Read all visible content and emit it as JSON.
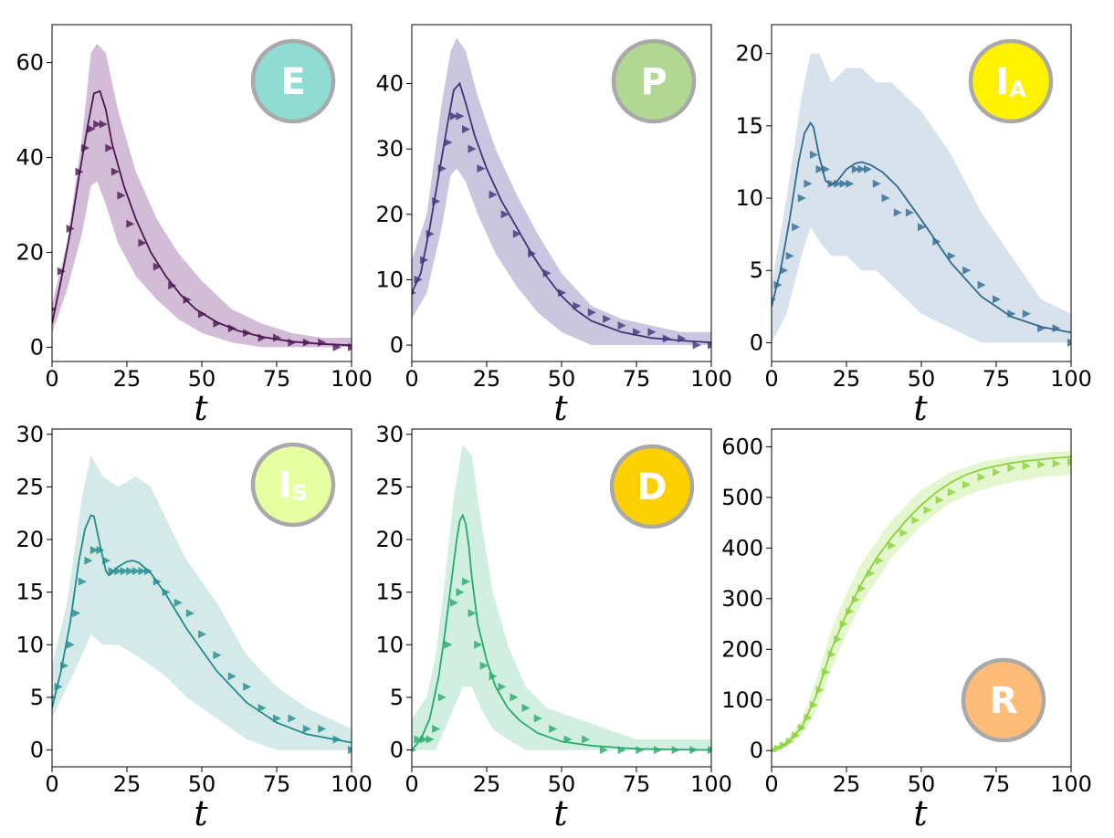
{
  "chart_data": [
    {
      "type": "line",
      "badge": {
        "text": "E",
        "sub": "",
        "fill": "#8fdcd2"
      },
      "color": "#4b1850",
      "band_color": "#9b6aa6",
      "xlabel": "t",
      "xlim": [
        0,
        100
      ],
      "ylim": [
        -3,
        68
      ],
      "xticks": [
        0,
        25,
        50,
        75,
        100
      ],
      "yticks": [
        0,
        20,
        40,
        60
      ],
      "model": {
        "x": [
          0,
          3,
          6,
          9,
          12,
          14,
          16,
          18,
          20,
          24,
          28,
          33,
          38,
          43,
          48,
          55,
          62,
          70,
          80,
          90,
          100
        ],
        "y": [
          5,
          14,
          24,
          36,
          47,
          53.5,
          54,
          50,
          43,
          34,
          27,
          20,
          15,
          11,
          8,
          5.3,
          3.5,
          2.2,
          1.2,
          0.7,
          0.4
        ]
      },
      "band": {
        "x": [
          0,
          5,
          10,
          13,
          15,
          18,
          22,
          28,
          35,
          42,
          50,
          60,
          70,
          80,
          90,
          100
        ],
        "lower": [
          3,
          12,
          24,
          34,
          35,
          30,
          22,
          15,
          10,
          6,
          3,
          1,
          0,
          0,
          0,
          0
        ],
        "upper": [
          9,
          22,
          44,
          62,
          64,
          62,
          50,
          37,
          27,
          20,
          14,
          8,
          5,
          3,
          2,
          2
        ]
      },
      "markers": {
        "x": [
          0,
          3,
          6,
          9,
          11,
          13,
          15,
          17,
          19,
          21,
          23,
          26,
          30,
          35,
          40,
          45,
          50,
          55,
          60,
          65,
          70,
          75,
          80,
          85,
          90,
          95,
          100
        ],
        "y": [
          8,
          16,
          25,
          37,
          42,
          46,
          47,
          47,
          42,
          37,
          32,
          26,
          22,
          17,
          13,
          10,
          7,
          5,
          4,
          3,
          2,
          2,
          1,
          1,
          1,
          0,
          0
        ]
      }
    },
    {
      "type": "line",
      "badge": {
        "text": "P",
        "sub": "",
        "fill": "#b1d893"
      },
      "color": "#3d3577",
      "band_color": "#8a80b8",
      "xlabel": "t",
      "xlim": [
        0,
        100
      ],
      "ylim": [
        -2.5,
        49
      ],
      "xticks": [
        0,
        25,
        50,
        75,
        100
      ],
      "yticks": [
        0,
        10,
        20,
        30,
        40
      ],
      "model": {
        "x": [
          0,
          3,
          6,
          9,
          12,
          14,
          16,
          18,
          21,
          25,
          30,
          35,
          40,
          45,
          50,
          55,
          60,
          70,
          80,
          90,
          100
        ],
        "y": [
          8,
          11,
          18,
          26,
          34,
          39,
          40,
          37,
          32,
          27,
          22,
          18,
          14,
          10.5,
          7.5,
          5.3,
          3.7,
          2,
          1.1,
          0.7,
          0.4
        ]
      },
      "band": {
        "x": [
          0,
          5,
          10,
          13,
          15,
          18,
          22,
          28,
          35,
          42,
          50,
          60,
          70,
          80,
          90,
          100
        ],
        "lower": [
          4,
          8,
          18,
          26,
          27,
          25,
          20,
          14,
          9,
          5,
          2,
          0,
          0,
          0,
          0,
          0
        ],
        "upper": [
          13,
          20,
          37,
          45,
          47,
          45,
          38,
          30,
          23,
          17,
          11,
          6,
          4,
          3,
          2,
          2
        ]
      },
      "markers": {
        "x": [
          0,
          2,
          4,
          6,
          8,
          10,
          12,
          14,
          16,
          18,
          20,
          23,
          27,
          31,
          35,
          40,
          45,
          50,
          55,
          60,
          65,
          70,
          75,
          80,
          85,
          90,
          95,
          100
        ],
        "y": [
          8,
          10,
          13,
          17,
          22,
          27,
          31,
          35,
          35,
          33,
          30,
          27,
          23,
          20,
          17,
          14,
          11,
          8,
          6,
          5,
          4,
          3,
          2,
          2,
          1,
          1,
          0,
          0
        ]
      }
    },
    {
      "type": "line",
      "badge": {
        "text": "I",
        "sub": "A",
        "fill": "#fff200"
      },
      "color": "#2f6a8f",
      "band_color": "#a9bfd4",
      "xlabel": "t",
      "xlim": [
        0,
        100
      ],
      "ylim": [
        -1.3,
        22
      ],
      "xticks": [
        0,
        25,
        50,
        75,
        100
      ],
      "yticks": [
        0,
        5,
        10,
        15,
        20
      ],
      "model": {
        "x": [
          0,
          3,
          6,
          9,
          11,
          13,
          14,
          16,
          18,
          20,
          22,
          25,
          28,
          30,
          33,
          37,
          42,
          50,
          60,
          70,
          80,
          90,
          100
        ],
        "y": [
          2.5,
          5,
          8.5,
          12.5,
          14.5,
          15.2,
          14.9,
          12.8,
          11.2,
          10.9,
          11.2,
          12,
          12.4,
          12.5,
          12.3,
          11.8,
          10.8,
          8.5,
          5.5,
          3.2,
          1.8,
          1.1,
          0.7
        ]
      },
      "band": {
        "x": [
          0,
          5,
          10,
          13,
          16,
          20,
          25,
          30,
          35,
          40,
          45,
          50,
          60,
          70,
          80,
          90,
          100
        ],
        "lower": [
          0,
          2,
          6,
          8,
          7,
          6,
          6,
          5,
          5,
          4,
          3,
          2,
          1,
          0,
          0,
          0,
          0
        ],
        "upper": [
          4,
          10,
          17,
          20,
          20,
          18,
          19,
          19,
          18,
          18,
          17,
          16,
          13,
          9,
          6,
          3,
          2
        ]
      },
      "markers": {
        "x": [
          0,
          2,
          4,
          6,
          8,
          10,
          12,
          14,
          16,
          18,
          20,
          22,
          24,
          26,
          28,
          30,
          32,
          35,
          38,
          42,
          46,
          50,
          55,
          60,
          65,
          70,
          75,
          80,
          85,
          90,
          95,
          100
        ],
        "y": [
          3,
          4,
          5,
          6,
          8,
          10,
          11,
          13,
          12,
          12,
          11,
          11,
          11,
          11,
          12,
          12,
          12,
          11,
          10,
          9,
          9,
          8,
          7,
          6,
          5,
          4,
          3,
          2,
          2,
          1,
          1,
          0
        ]
      }
    },
    {
      "type": "line",
      "badge": {
        "text": "I",
        "sub": "S",
        "fill": "#e6ffa0"
      },
      "color": "#238a8d",
      "band_color": "#9ed0cb",
      "xlabel": "t",
      "xlim": [
        0,
        100
      ],
      "ylim": [
        -1.6,
        30.5
      ],
      "xticks": [
        0,
        25,
        50,
        75,
        100
      ],
      "yticks": [
        0,
        5,
        10,
        15,
        20,
        25,
        30
      ],
      "model": {
        "x": [
          0,
          3,
          6,
          9,
          11,
          13,
          14,
          16,
          18,
          19,
          20,
          22,
          25,
          27,
          29,
          33,
          38,
          45,
          55,
          65,
          75,
          85,
          100
        ],
        "y": [
          4,
          7.5,
          12,
          18,
          21,
          22.3,
          22.2,
          19.5,
          17,
          16.6,
          16.8,
          17.4,
          17.9,
          18,
          17.8,
          16.8,
          14.8,
          11.5,
          7.5,
          4.5,
          2.6,
          1.5,
          0.7
        ]
      },
      "band": {
        "x": [
          0,
          5,
          10,
          13,
          17,
          22,
          28,
          33,
          38,
          45,
          55,
          65,
          75,
          85,
          100
        ],
        "lower": [
          3,
          6,
          9,
          11,
          10,
          10,
          9,
          8,
          7,
          5,
          3,
          1,
          0,
          0,
          0
        ],
        "upper": [
          8,
          14,
          24,
          28,
          26,
          25,
          26,
          25,
          22,
          18,
          14,
          9,
          6,
          4,
          2
        ]
      },
      "markers": {
        "x": [
          0,
          2,
          4,
          6,
          8,
          10,
          12,
          14,
          16,
          18,
          20,
          22,
          24,
          26,
          28,
          30,
          32,
          35,
          38,
          42,
          46,
          50,
          55,
          60,
          65,
          70,
          75,
          80,
          85,
          90,
          95,
          100
        ],
        "y": [
          5,
          6,
          8,
          10,
          13,
          16,
          18,
          19,
          19,
          18,
          17,
          17,
          17,
          17,
          17,
          17,
          17,
          16,
          15,
          14,
          13,
          11,
          9,
          7,
          6,
          4,
          3,
          3,
          2,
          2,
          1,
          0
        ]
      }
    },
    {
      "type": "line",
      "badge": {
        "text": "D",
        "sub": "",
        "fill": "#ffd000"
      },
      "color": "#27a96c",
      "band_color": "#99dcbb",
      "xlabel": "t",
      "xlim": [
        0,
        100
      ],
      "ylim": [
        -1.6,
        30.5
      ],
      "xticks": [
        0,
        25,
        50,
        75,
        100
      ],
      "yticks": [
        0,
        5,
        10,
        15,
        20,
        25,
        30
      ],
      "model": {
        "x": [
          0,
          3,
          6,
          9,
          11,
          13,
          15,
          16,
          17,
          18,
          19,
          20,
          22,
          25,
          28,
          32,
          36,
          42,
          50,
          60,
          75,
          100
        ],
        "y": [
          0,
          1,
          3,
          7,
          11,
          15.5,
          20,
          21.8,
          22.3,
          21.5,
          19.5,
          16.5,
          12,
          8.5,
          6,
          4,
          2.8,
          1.6,
          0.8,
          0.4,
          0.1,
          0
        ]
      },
      "band": {
        "x": [
          0,
          5,
          8,
          11,
          14,
          17,
          20,
          23,
          27,
          32,
          38,
          45,
          55,
          65,
          75,
          100
        ],
        "lower": [
          0,
          0,
          0,
          2,
          4,
          6,
          6,
          4,
          2,
          1,
          0,
          0,
          0,
          0,
          0,
          0
        ],
        "upper": [
          3,
          5,
          9,
          16,
          24,
          29,
          28,
          22,
          15,
          10,
          6,
          4,
          3,
          2,
          1,
          1
        ]
      },
      "markers": {
        "x": [
          0,
          2,
          4,
          6,
          8,
          10,
          12,
          14,
          16,
          18,
          20,
          22,
          24,
          27,
          30,
          34,
          38,
          42,
          47,
          52,
          58,
          64,
          70,
          76,
          82,
          88,
          94,
          100
        ],
        "y": [
          0,
          1,
          1,
          1,
          2,
          5,
          10,
          14,
          15,
          16,
          13,
          10,
          8,
          7,
          6,
          5,
          4,
          3,
          2,
          1,
          1,
          0,
          0,
          0,
          0,
          0,
          0,
          0
        ]
      }
    },
    {
      "type": "line",
      "badge": {
        "text": "R",
        "sub": "",
        "fill": "#ffbb78"
      },
      "color": "#8ad23a",
      "band_color": "#c3eb92",
      "xlabel": "t",
      "xlim": [
        0,
        100
      ],
      "ylim": [
        -32,
        635
      ],
      "xticks": [
        0,
        25,
        50,
        75,
        100
      ],
      "yticks": [
        0,
        100,
        200,
        300,
        400,
        500,
        600
      ],
      "model": {
        "x": [
          0,
          5,
          10,
          15,
          20,
          25,
          30,
          35,
          40,
          45,
          50,
          55,
          60,
          65,
          70,
          75,
          80,
          85,
          90,
          95,
          100
        ],
        "y": [
          0,
          15,
          45,
          110,
          200,
          270,
          330,
          380,
          420,
          455,
          485,
          510,
          530,
          545,
          555,
          562,
          568,
          572,
          575,
          578,
          580
        ]
      },
      "band": {
        "x": [
          0,
          5,
          10,
          15,
          20,
          25,
          30,
          40,
          50,
          60,
          70,
          80,
          90,
          100
        ],
        "lower": [
          0,
          10,
          30,
          80,
          160,
          230,
          290,
          380,
          445,
          490,
          515,
          530,
          540,
          545
        ],
        "upper": [
          5,
          22,
          60,
          140,
          240,
          310,
          370,
          455,
          515,
          550,
          570,
          580,
          588,
          592
        ]
      },
      "markers": {
        "x": [
          0,
          2,
          4,
          6,
          8,
          10,
          12,
          14,
          16,
          18,
          20,
          22,
          24,
          26,
          28,
          30,
          33,
          36,
          40,
          44,
          48,
          52,
          56,
          60,
          65,
          70,
          75,
          80,
          85,
          90,
          95,
          100
        ],
        "y": [
          0,
          4,
          10,
          18,
          30,
          45,
          65,
          90,
          120,
          155,
          190,
          220,
          250,
          275,
          298,
          320,
          350,
          375,
          405,
          430,
          455,
          475,
          495,
          510,
          525,
          540,
          550,
          558,
          562,
          565,
          567,
          570
        ]
      }
    }
  ]
}
